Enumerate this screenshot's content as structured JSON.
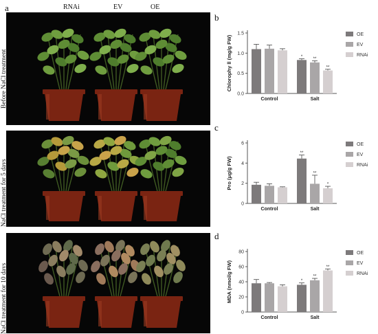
{
  "panel_a": {
    "letter": "a",
    "columns": [
      "RNAi",
      "EV",
      "OE"
    ],
    "rows": [
      {
        "label": "Before NaCl treatment"
      },
      {
        "label": "NaCl treatment for 5 days"
      },
      {
        "label": "NaCl treatment for 10 days"
      }
    ]
  },
  "colors": {
    "OE": "#7d7a7b",
    "EV": "#a9a6a7",
    "RNAi": "#d5cfd0",
    "axis": "#555555",
    "pot": "#7a2412"
  },
  "chart_data": [
    {
      "letter": "b",
      "type": "bar",
      "categories": [
        "Control",
        "Salt"
      ],
      "series": [
        {
          "name": "OE",
          "values": [
            1.1,
            0.83
          ],
          "errors": [
            0.12,
            0.03
          ],
          "sig": [
            "",
            "*"
          ]
        },
        {
          "name": "EV",
          "values": [
            1.11,
            0.77
          ],
          "errors": [
            0.09,
            0.04
          ],
          "sig": [
            "",
            "**"
          ]
        },
        {
          "name": "RNAi",
          "values": [
            1.07,
            0.57
          ],
          "errors": [
            0.04,
            0.03
          ],
          "sig": [
            "",
            "**"
          ]
        }
      ],
      "ylabel": "Chlorophy ll (mg/g FW)",
      "ylim": [
        0,
        1.5
      ],
      "yticks": [
        "0.0",
        "0.5",
        "1.0",
        "1.5"
      ],
      "ytick_values": [
        0,
        0.5,
        1.0,
        1.5
      ],
      "legend": "right"
    },
    {
      "letter": "c",
      "type": "bar",
      "categories": [
        "Control",
        "Salt"
      ],
      "series": [
        {
          "name": "OE",
          "values": [
            1.85,
            4.45
          ],
          "errors": [
            0.25,
            0.35
          ],
          "sig": [
            "",
            "**"
          ]
        },
        {
          "name": "EV",
          "values": [
            1.75,
            1.95
          ],
          "errors": [
            0.2,
            0.85
          ],
          "sig": [
            "",
            "**"
          ]
        },
        {
          "name": "RNAi",
          "values": [
            1.6,
            1.5
          ],
          "errors": [
            0.05,
            0.2
          ],
          "sig": [
            "",
            "*"
          ]
        }
      ],
      "ylabel": "Pro (μg/g FW)",
      "ylim": [
        0,
        6
      ],
      "yticks": [
        "0",
        "2",
        "4",
        "6"
      ],
      "ytick_values": [
        0,
        2,
        4,
        6
      ],
      "legend": "right"
    },
    {
      "letter": "d",
      "type": "bar",
      "categories": [
        "Control",
        "Salt"
      ],
      "series": [
        {
          "name": "OE",
          "values": [
            38,
            36
          ],
          "errors": [
            5,
            2.5
          ],
          "sig": [
            "",
            "*"
          ]
        },
        {
          "name": "EV",
          "values": [
            38,
            42
          ],
          "errors": [
            1,
            2.5
          ],
          "sig": [
            "",
            "**"
          ]
        },
        {
          "name": "RNAi",
          "values": [
            34,
            55
          ],
          "errors": [
            2,
            2
          ],
          "sig": [
            "",
            "**"
          ]
        }
      ],
      "ylabel": "MDA (nmol/g FW)",
      "ylim": [
        0,
        80
      ],
      "yticks": [
        "0",
        "20",
        "40",
        "60",
        "80"
      ],
      "ytick_values": [
        0,
        20,
        40,
        60,
        80
      ],
      "legend": "right"
    }
  ]
}
